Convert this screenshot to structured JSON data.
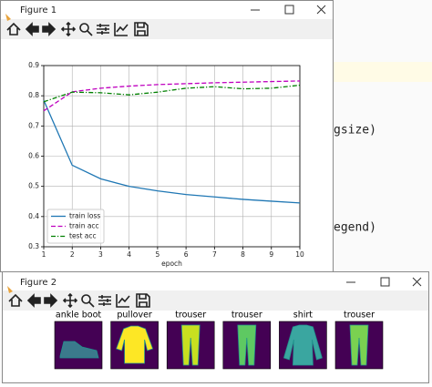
{
  "editor": {
    "lines": [
      "gsize)",
      "egend)"
    ]
  },
  "figure1": {
    "title": "Figure 1"
  },
  "figure2": {
    "title": "Figure 2",
    "images": [
      {
        "label": "ankle boot"
      },
      {
        "label": "pullover"
      },
      {
        "label": "trouser"
      },
      {
        "label": "trouser"
      },
      {
        "label": "shirt"
      },
      {
        "label": "trouser"
      }
    ]
  },
  "chart_data": {
    "type": "line",
    "xlabel": "epoch",
    "x": [
      1,
      2,
      3,
      4,
      5,
      6,
      7,
      8,
      9,
      10
    ],
    "series": [
      {
        "name": "train loss",
        "color": "#1f77b4",
        "dash": "solid",
        "values": [
          0.785,
          0.57,
          0.525,
          0.5,
          0.485,
          0.473,
          0.465,
          0.457,
          0.451,
          0.445
        ]
      },
      {
        "name": "train acc",
        "color": "#bf00bf",
        "dash": "dashed",
        "values": [
          0.75,
          0.813,
          0.825,
          0.832,
          0.837,
          0.84,
          0.843,
          0.845,
          0.847,
          0.849
        ]
      },
      {
        "name": "test acc",
        "color": "#008000",
        "dash": "dashdot",
        "values": [
          0.78,
          0.812,
          0.81,
          0.803,
          0.812,
          0.825,
          0.83,
          0.823,
          0.825,
          0.835
        ]
      }
    ],
    "xlim": [
      1,
      10
    ],
    "xticks": [
      1,
      2,
      3,
      4,
      5,
      6,
      7,
      8,
      9,
      10
    ],
    "ylim": [
      0.3,
      0.9
    ],
    "yticks": [
      0.3,
      0.4,
      0.5,
      0.6,
      0.7,
      0.8,
      0.9
    ],
    "grid": true,
    "legend": "lower left"
  }
}
